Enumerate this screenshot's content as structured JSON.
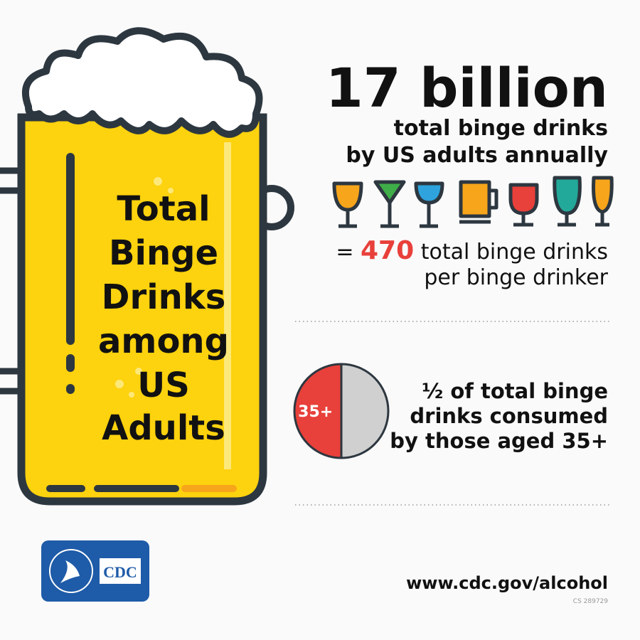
{
  "mug_title": [
    "Total",
    "Binge",
    "Drinks",
    "among",
    "US",
    "Adults"
  ],
  "headline": "17 billion",
  "headline_sub": [
    "total binge drinks",
    "by US adults annually"
  ],
  "per_drinker": {
    "equals": "=",
    "number": "470",
    "line1": "total binge drinks",
    "line2": "per binge drinker"
  },
  "pie": {
    "values": [
      50,
      50
    ],
    "labels": [
      "35+",
      null
    ],
    "colors": [
      "#e8403a",
      "#d0d0d0"
    ]
  },
  "half_text": [
    "½ of total binge",
    "drinks consumed",
    "by those aged 35+"
  ],
  "logo": "CDC",
  "url": "www.cdc.gov/alcohol",
  "code": "CS 289729"
}
